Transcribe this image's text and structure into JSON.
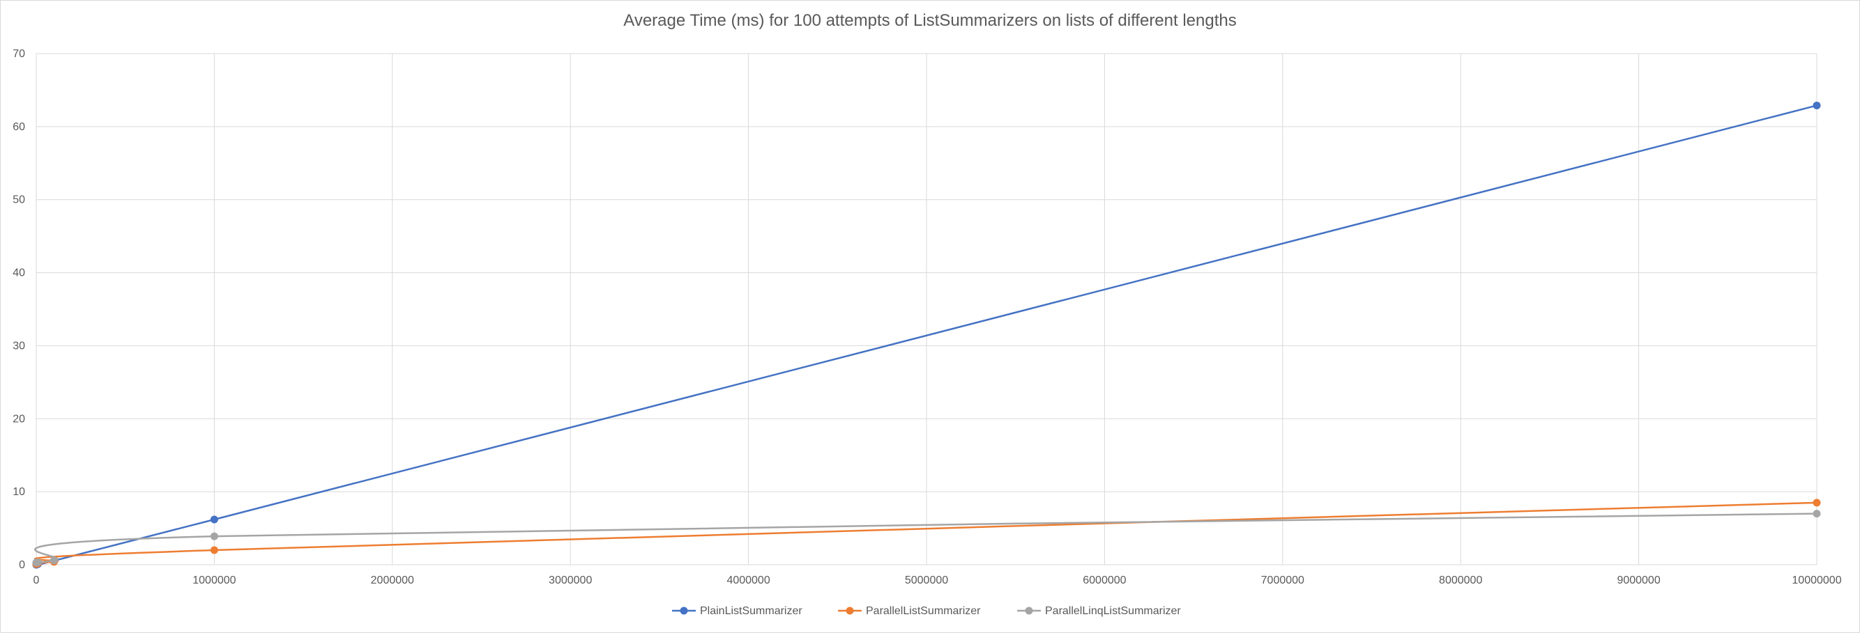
{
  "chart_data": {
    "type": "line",
    "title": "Average Time (ms) for 100 attempts of ListSummarizers on lists of different lengths",
    "xlabel": "",
    "ylabel": "",
    "xlim": [
      0,
      10000000
    ],
    "ylim": [
      0,
      70
    ],
    "x_ticks": [
      0,
      1000000,
      2000000,
      3000000,
      4000000,
      5000000,
      6000000,
      7000000,
      8000000,
      9000000,
      10000000
    ],
    "x_tick_labels": [
      "0",
      "1000000",
      "2000000",
      "3000000",
      "4000000",
      "5000000",
      "6000000",
      "7000000",
      "8000000",
      "9000000",
      "10000000"
    ],
    "y_ticks": [
      0,
      10,
      20,
      30,
      40,
      50,
      60,
      70
    ],
    "y_tick_labels": [
      "0",
      "10",
      "20",
      "30",
      "40",
      "50",
      "60",
      "70"
    ],
    "grid": true,
    "smooth": true,
    "legend_position": "bottom",
    "series": [
      {
        "name": "PlainListSummarizer",
        "color": "#4472C4",
        "points": [
          [
            0,
            0.0
          ],
          [
            1000,
            0.01
          ],
          [
            10000,
            0.1
          ],
          [
            100000,
            0.6
          ],
          [
            1000000,
            6.2
          ],
          [
            10000000,
            62.9
          ]
        ]
      },
      {
        "name": "ParallelListSummarizer",
        "color": "#ED7D31",
        "points": [
          [
            0,
            0.1
          ],
          [
            1000,
            0.15
          ],
          [
            10000,
            0.2
          ],
          [
            100000,
            0.4
          ],
          [
            1000000,
            2.0
          ],
          [
            10000000,
            8.5
          ]
        ]
      },
      {
        "name": "ParallelLinqListSummarizer",
        "color": "#A5A5A5",
        "points": [
          [
            0,
            0.3
          ],
          [
            1000,
            0.3
          ],
          [
            10000,
            0.35
          ],
          [
            100000,
            0.6
          ],
          [
            1000000,
            3.9
          ],
          [
            10000000,
            7.0
          ]
        ]
      }
    ]
  }
}
